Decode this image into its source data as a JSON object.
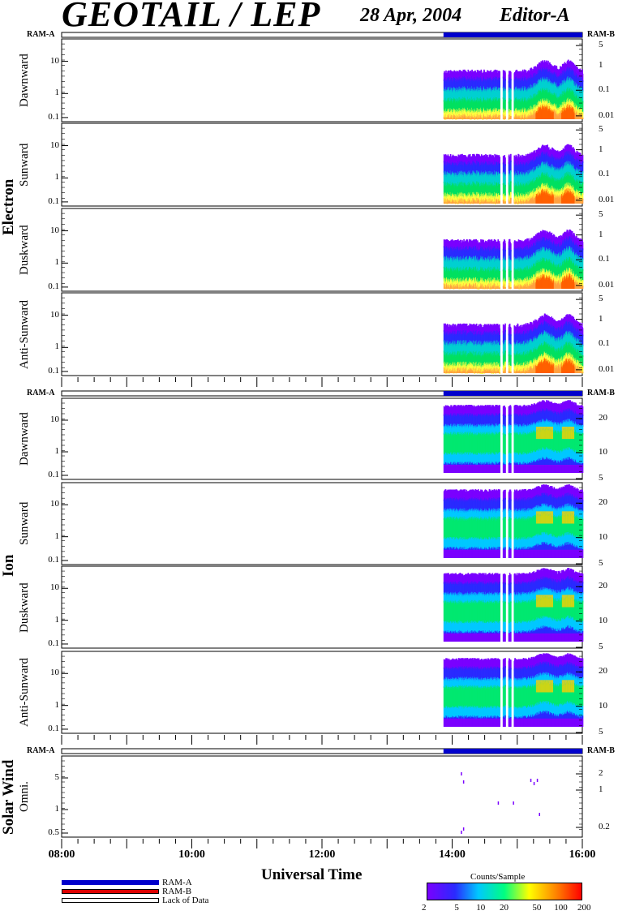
{
  "header": {
    "title": "GEOTAIL / LEP",
    "date": "28 Apr, 2004",
    "editor": "Editor-A"
  },
  "ram_labels": {
    "left": "RAM-A",
    "right": "RAM-B"
  },
  "group_labels": {
    "electron": "Electron",
    "ion": "Ion",
    "solar_wind": "Solar Wind"
  },
  "chart_data": [
    {
      "type": "heatmap",
      "title": "GEOTAIL / LEP",
      "xlabel": "Universal Time",
      "x_ticks": [
        "08:00",
        "10:00",
        "12:00",
        "14:00",
        "16:00"
      ],
      "data_coverage": {
        "start": "13:52",
        "end": "16:00",
        "gaps": [
          "14:45",
          "14:50",
          "14:55"
        ]
      },
      "colorbar": {
        "title": "Counts/Sample",
        "ticks": [
          "2",
          "5",
          "10",
          "20",
          "50",
          "100",
          "200"
        ],
        "colors": [
          "#7a00ff",
          "#2a2aff",
          "#00c8ff",
          "#00ff80",
          "#ffff00",
          "#ff8000",
          "#ff0000"
        ]
      },
      "panels": [
        {
          "group": "Electron",
          "label": "Dawnward",
          "left_ticks": [
            "10",
            "1",
            "0.1"
          ],
          "right_ticks": [
            "5",
            "1",
            "0.1",
            "0.01"
          ]
        },
        {
          "group": "Electron",
          "label": "Sunward",
          "left_ticks": [
            "10",
            "1",
            "0.1"
          ],
          "right_ticks": [
            "5",
            "1",
            "0.1",
            "0.01"
          ]
        },
        {
          "group": "Electron",
          "label": "Duskward",
          "left_ticks": [
            "10",
            "1",
            "0.1"
          ],
          "right_ticks": [
            "5",
            "1",
            "0.1",
            "0.01"
          ]
        },
        {
          "group": "Electron",
          "label": "Anti-Sunward",
          "left_ticks": [
            "10",
            "1",
            "0.1"
          ],
          "right_ticks": [
            "5",
            "1",
            "0.1",
            "0.01"
          ]
        },
        {
          "group": "Ion",
          "label": "Dawnward",
          "left_ticks": [
            "10",
            "1",
            "0.1"
          ],
          "right_ticks": [
            "20",
            "10",
            "5"
          ]
        },
        {
          "group": "Ion",
          "label": "Sunward",
          "left_ticks": [
            "10",
            "1",
            "0.1"
          ],
          "right_ticks": [
            "20",
            "10",
            "5"
          ]
        },
        {
          "group": "Ion",
          "label": "Duskward",
          "left_ticks": [
            "10",
            "1",
            "0.1"
          ],
          "right_ticks": [
            "20",
            "10",
            "5"
          ]
        },
        {
          "group": "Ion",
          "label": "Anti-Sunward",
          "left_ticks": [
            "10",
            "1",
            "0.1"
          ],
          "right_ticks": [
            "20",
            "10",
            "5"
          ]
        },
        {
          "group": "Solar Wind",
          "label": "Omni.",
          "left_ticks": [
            "5",
            "1",
            "0.5"
          ],
          "right_ticks": [
            "2",
            "1",
            "0.2"
          ]
        }
      ]
    }
  ],
  "legend": {
    "ram_a": "RAM-A",
    "ram_b": "RAM-B",
    "lack": "Lack of Data"
  },
  "colors": {
    "ram_a": "#0000cc",
    "ram_b": "#dd0000",
    "frame": "#000000"
  }
}
